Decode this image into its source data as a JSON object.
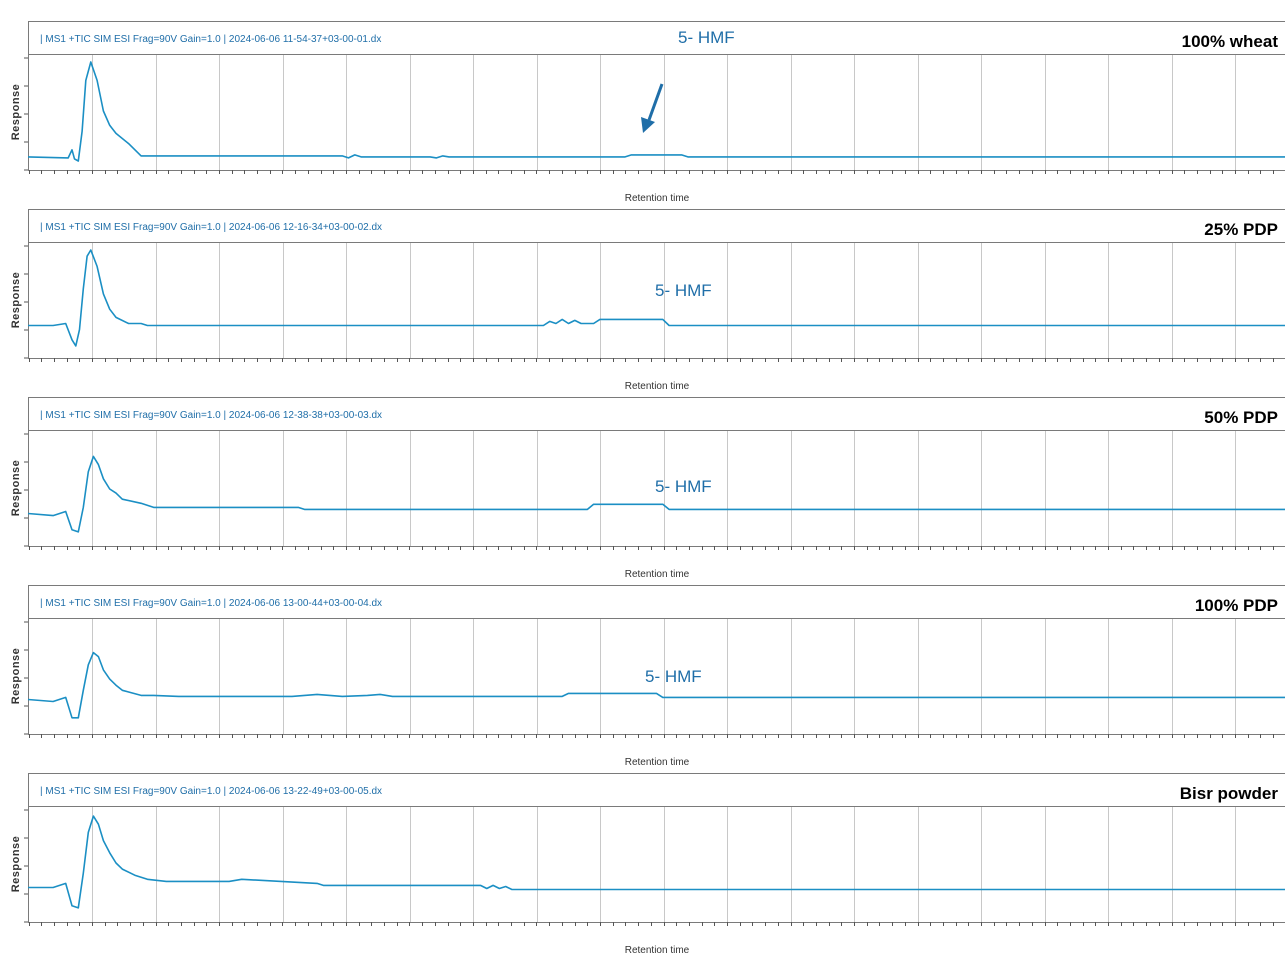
{
  "chart_data": [
    {
      "type": "line",
      "header": "| MS1 +TIC SIM ESI Frag=90V Gain=1.0 | 2024-06-06 11-54-37+03-00-01.dx",
      "sample": "100% wheat",
      "ylabel": "Response",
      "xlabel": "Retention time",
      "annotation": "5- HMF",
      "arrow": true,
      "grid": true,
      "xlim": [
        0,
        100
      ],
      "ylim": [
        0,
        100
      ],
      "series": [
        {
          "color": "#1b8fc4",
          "x": [
            0,
            3.2,
            3.5,
            3.7,
            4.0,
            4.3,
            4.6,
            5.0,
            5.5,
            6.0,
            6.5,
            7.0,
            8.0,
            9.0,
            25.0,
            25.5,
            26.0,
            26.5,
            32.0,
            32.5,
            33.0,
            33.5,
            47.5,
            48.0,
            52.0,
            52.5,
            100
          ],
          "y": [
            5,
            4,
            12,
            3,
            1,
            30,
            80,
            98,
            80,
            50,
            36,
            28,
            18,
            6,
            6,
            4,
            7,
            5,
            5,
            4,
            6,
            5,
            5,
            7,
            7,
            5,
            5
          ]
        }
      ]
    },
    {
      "type": "line",
      "header": "| MS1 +TIC SIM ESI Frag=90V Gain=1.0 | 2024-06-06 12-16-34+03-00-02.dx",
      "sample": "25% PDP",
      "ylabel": "Response",
      "xlabel": "Retention time",
      "annotation": "5- HMF",
      "arrow": false,
      "grid": true,
      "xlim": [
        0,
        100
      ],
      "ylim": [
        0,
        100
      ],
      "series": [
        {
          "color": "#1b8fc4",
          "x": [
            0,
            2.0,
            3.0,
            3.5,
            3.8,
            4.1,
            4.4,
            4.7,
            5.0,
            5.5,
            6.0,
            6.5,
            7.0,
            8.0,
            9.0,
            9.5,
            41.0,
            41.5,
            42.0,
            42.5,
            43.0,
            43.5,
            44.0,
            45.0,
            45.5,
            50.5,
            51.0,
            100
          ],
          "y": [
            24,
            24,
            26,
            10,
            4,
            20,
            60,
            92,
            98,
            82,
            55,
            40,
            32,
            26,
            26,
            24,
            24,
            28,
            26,
            30,
            26,
            29,
            26,
            26,
            30,
            30,
            24,
            24
          ]
        }
      ]
    },
    {
      "type": "line",
      "header": "| MS1 +TIC SIM ESI Frag=90V Gain=1.0 | 2024-06-06 12-38-38+03-00-03.dx",
      "sample": "50% PDP",
      "ylabel": "Response",
      "xlabel": "Retention time",
      "annotation": "5- HMF",
      "arrow": false,
      "grid": true,
      "xlim": [
        0,
        100
      ],
      "ylim": [
        0,
        100
      ],
      "series": [
        {
          "color": "#1b8fc4",
          "x": [
            0,
            2.0,
            3.0,
            3.5,
            4.0,
            4.4,
            4.8,
            5.2,
            5.6,
            6.0,
            6.5,
            7.0,
            7.5,
            9.0,
            10.0,
            21.5,
            22.0,
            44.5,
            45.0,
            50.5,
            51.0,
            100
          ],
          "y": [
            24,
            22,
            26,
            8,
            6,
            30,
            65,
            80,
            72,
            58,
            48,
            44,
            38,
            34,
            30,
            30,
            28,
            28,
            33,
            33,
            28,
            28
          ]
        }
      ]
    },
    {
      "type": "line",
      "header": "| MS1 +TIC SIM ESI Frag=90V Gain=1.0 | 2024-06-06 13-00-44+03-00-04.dx",
      "sample": "100% PDP",
      "ylabel": "Response",
      "xlabel": "Retention time",
      "annotation": "5- HMF",
      "arrow": false,
      "grid": true,
      "xlim": [
        0,
        100
      ],
      "ylim": [
        0,
        100
      ],
      "series": [
        {
          "color": "#1b8fc4",
          "x": [
            0,
            2.0,
            3.0,
            3.5,
            4.0,
            4.4,
            4.8,
            5.2,
            5.6,
            6.0,
            6.5,
            7.0,
            7.5,
            9.0,
            10.0,
            12.0,
            21.0,
            23.0,
            25.0,
            27.0,
            28.0,
            29.0,
            42.5,
            43.0,
            50.0,
            50.5,
            100
          ],
          "y": [
            26,
            24,
            28,
            8,
            8,
            35,
            60,
            72,
            68,
            55,
            46,
            40,
            35,
            30,
            30,
            29,
            29,
            31,
            29,
            30,
            31,
            29,
            29,
            32,
            32,
            28,
            28
          ]
        }
      ]
    },
    {
      "type": "line",
      "header": "| MS1 +TIC SIM ESI Frag=90V Gain=1.0 | 2024-06-06 13-22-49+03-00-05.dx",
      "sample": "Bisr powder",
      "ylabel": "Response",
      "xlabel": "Retention time",
      "annotation": "",
      "arrow": false,
      "grid": true,
      "xlim": [
        0,
        100
      ],
      "ylim": [
        0,
        100
      ],
      "series": [
        {
          "color": "#1b8fc4",
          "x": [
            0,
            2.0,
            3.0,
            3.5,
            4.0,
            4.4,
            4.8,
            5.2,
            5.6,
            6.0,
            6.5,
            7.0,
            7.5,
            8.5,
            9.5,
            11.0,
            16.0,
            17.0,
            23.0,
            23.5,
            36.0,
            36.5,
            37.0,
            37.5,
            38.0,
            38.5,
            100
          ],
          "y": [
            26,
            26,
            30,
            8,
            6,
            40,
            80,
            96,
            88,
            72,
            60,
            50,
            44,
            38,
            34,
            32,
            32,
            34,
            30,
            28,
            28,
            25,
            28,
            25,
            27,
            24,
            24
          ]
        }
      ]
    }
  ]
}
